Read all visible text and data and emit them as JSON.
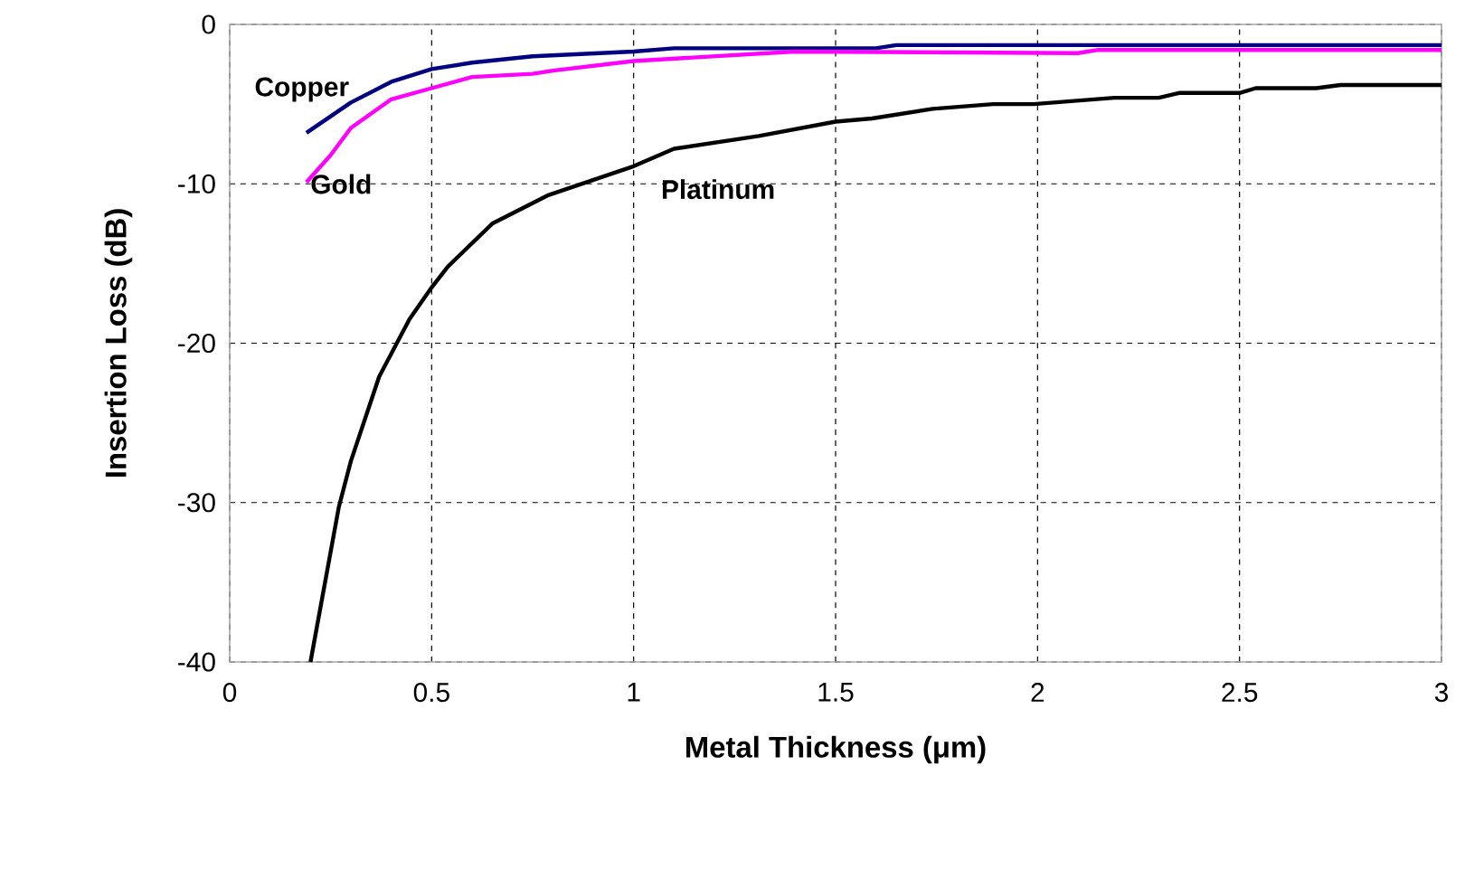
{
  "chart_data": {
    "type": "line",
    "xlabel": "Metal Thickness (μm)",
    "ylabel": "Insertion Loss (dB)",
    "xlim": [
      0,
      3
    ],
    "ylim": [
      -40,
      0
    ],
    "xticks": [
      0,
      0.5,
      1,
      1.5,
      2,
      2.5,
      3
    ],
    "yticks": [
      -40,
      -30,
      -20,
      -10,
      0
    ],
    "grid": true,
    "marker": "none",
    "line_style": "solid",
    "series": [
      {
        "name": "Copper",
        "color": "#000080",
        "x": [
          0.19,
          0.3,
          0.4,
          0.5,
          0.6,
          0.75,
          1.0,
          1.1,
          1.6,
          1.65,
          3.0
        ],
        "values": [
          -6.8,
          -4.9,
          -3.6,
          -2.8,
          -2.4,
          -2.0,
          -1.7,
          -1.5,
          -1.5,
          -1.3,
          -1.3
        ]
      },
      {
        "name": "Gold",
        "color": "#ff00ff",
        "x": [
          0.19,
          0.25,
          0.3,
          0.4,
          0.5,
          0.6,
          0.75,
          0.8,
          1.0,
          1.2,
          1.4,
          2.1,
          2.15,
          3.0
        ],
        "values": [
          -9.9,
          -8.2,
          -6.5,
          -4.7,
          -4.0,
          -3.3,
          -3.1,
          -2.9,
          -2.3,
          -2.0,
          -1.7,
          -1.8,
          -1.6,
          -1.6
        ]
      },
      {
        "name": "Platinum",
        "color": "#000000",
        "x": [
          0.2,
          0.27,
          0.3,
          0.37,
          0.445,
          0.5,
          0.54,
          0.65,
          0.79,
          1.0,
          1.1,
          1.31,
          1.5,
          1.59,
          1.74,
          1.89,
          1.99,
          2.19,
          2.3,
          2.35,
          2.5,
          2.54,
          2.69,
          2.75,
          3.0
        ],
        "values": [
          -40,
          -30.3,
          -27.4,
          -22.1,
          -18.5,
          -16.5,
          -15.2,
          -12.5,
          -10.7,
          -8.9,
          -7.8,
          -7.0,
          -6.1,
          -5.9,
          -5.3,
          -5.0,
          -5.0,
          -4.6,
          -4.6,
          -4.3,
          -4.3,
          -4.0,
          -4.0,
          -3.8,
          -3.8
        ]
      }
    ]
  }
}
